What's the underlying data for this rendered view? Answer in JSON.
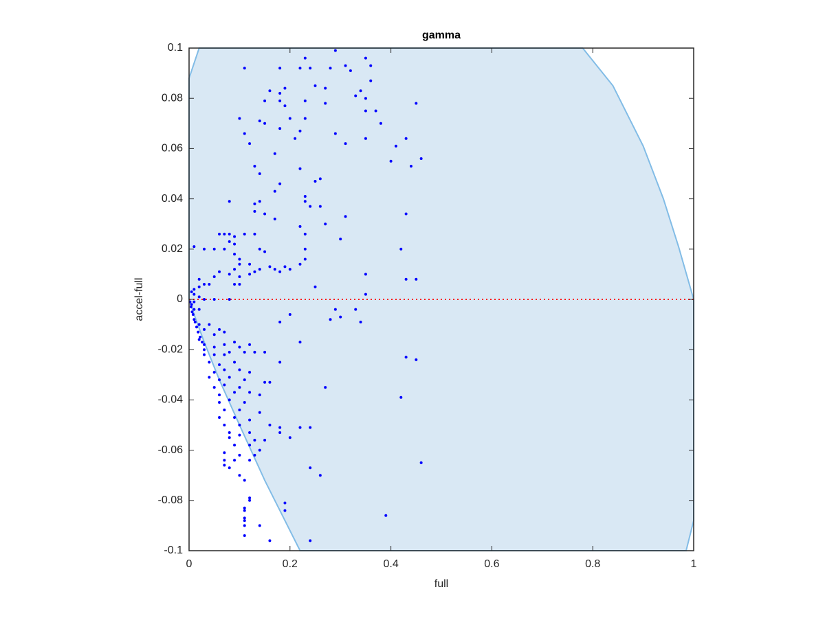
{
  "chart_data": {
    "type": "scatter",
    "title": "gamma",
    "x_label": "full",
    "y_label": "accel-full",
    "xlim": [
      0,
      1
    ],
    "ylim": [
      -0.1,
      0.1
    ],
    "xticks": [
      0,
      0.2,
      0.4,
      0.6,
      0.8,
      1
    ],
    "yticks": [
      -0.1,
      -0.08,
      -0.06,
      -0.04,
      -0.02,
      0,
      0.02,
      0.04,
      0.06,
      0.08,
      0.1
    ],
    "color": "#0000ff",
    "region": {
      "color": "#d9e8f4",
      "edge_color": "#82bce6",
      "x": [
        0,
        0,
        0.02,
        0.78,
        0.84,
        0.9,
        0.94,
        0.97,
        1,
        1,
        0.985,
        0.22,
        0.15,
        0.1,
        0.06,
        0.03,
        0.01
      ],
      "y": [
        0,
        0.088,
        0.1,
        0.1,
        0.085,
        0.061,
        0.04,
        0.021,
        0,
        -0.088,
        -0.1,
        -0.1,
        -0.072,
        -0.05,
        -0.032,
        -0.017,
        -0.006
      ]
    },
    "hline": {
      "value": 0,
      "color": "#ff0000"
    },
    "x": [
      0.29,
      0.23,
      0.35,
      0.36,
      0.31,
      0.32,
      0.24,
      0.22,
      0.28,
      0.18,
      0.11,
      0.25,
      0.19,
      0.18,
      0.16,
      0.27,
      0.34,
      0.35,
      0.33,
      0.36,
      0.15,
      0.18,
      0.19,
      0.23,
      0.27,
      0.45,
      0.35,
      0.37,
      0.1,
      0.14,
      0.15,
      0.2,
      0.23,
      0.38,
      0.11,
      0.18,
      0.22,
      0.29,
      0.21,
      0.35,
      0.43,
      0.12,
      0.31,
      0.41,
      0.17,
      0.4,
      0.46,
      0.44,
      0.13,
      0.14,
      0.22,
      0.25,
      0.26,
      0.18,
      0.17,
      0.08,
      0.14,
      0.13,
      0.23,
      0.23,
      0.24,
      0.26,
      0.13,
      0.43,
      0.15,
      0.17,
      0.31,
      0.27,
      0.22,
      0.06,
      0.07,
      0.08,
      0.11,
      0.13,
      0.23,
      0.3,
      0.08,
      0.09,
      0.09,
      0.01,
      0.03,
      0.05,
      0.07,
      0.14,
      0.15,
      0.23,
      0.42,
      0.09,
      0.1,
      0.23,
      0.22,
      0.1,
      0.12,
      0.19,
      0.2,
      0.16,
      0.17,
      0.14,
      0.13,
      0.06,
      0.05,
      0.09,
      0.08,
      0.12,
      0.1,
      0.18,
      0.35,
      0.43,
      0.45,
      0.02,
      0.03,
      0.04,
      0.09,
      0.1,
      0.25,
      0.02,
      0.01,
      0.005,
      0.01,
      0.35,
      0.02,
      0.03,
      0.05,
      0.08,
      0.01,
      0.005,
      0.01,
      0.02,
      0.29,
      0.33,
      0.2,
      0.3,
      0.28,
      0.34,
      0.18,
      0.01,
      0.02,
      0.03,
      0.04,
      0.06,
      0.05,
      0.07,
      0.02,
      0.03,
      0.05,
      0.07,
      0.09,
      0.1,
      0.12,
      0.22,
      0.03,
      0.05,
      0.07,
      0.08,
      0.11,
      0.13,
      0.15,
      0.43,
      0.45,
      0.04,
      0.06,
      0.09,
      0.18,
      0.05,
      0.07,
      0.1,
      0.12,
      0.04,
      0.06,
      0.08,
      0.11,
      0.15,
      0.16,
      0.05,
      0.07,
      0.1,
      0.27,
      0.06,
      0.09,
      0.12,
      0.14,
      0.06,
      0.08,
      0.11,
      0.42,
      0.07,
      0.1,
      0.14,
      0.06,
      0.09,
      0.12,
      0.07,
      0.1,
      0.16,
      0.08,
      0.12,
      0.18,
      0.22,
      0.24,
      0.08,
      0.1,
      0.13,
      0.15,
      0.18,
      0.2,
      0.09,
      0.12,
      0.14,
      0.07,
      0.1,
      0.13,
      0.07,
      0.09,
      0.12,
      0.46,
      0.07,
      0.08,
      0.24,
      0.1,
      0.26,
      0.11,
      0.12,
      0.12,
      0.19,
      0.19,
      0.11,
      0.11,
      0.39,
      0.11,
      0.11,
      0.11,
      0.14,
      0.11,
      0.16,
      0.24,
      0.002,
      0.004,
      0.006,
      0.008,
      0.012,
      0.015,
      0.018,
      0.022,
      0.026,
      0.03
    ],
    "values": [
      0.099,
      0.096,
      0.096,
      0.093,
      0.093,
      0.091,
      0.092,
      0.092,
      0.092,
      0.092,
      0.092,
      0.085,
      0.084,
      0.082,
      0.083,
      0.084,
      0.083,
      0.08,
      0.081,
      0.087,
      0.079,
      0.079,
      0.077,
      0.079,
      0.078,
      0.078,
      0.075,
      0.075,
      0.072,
      0.071,
      0.07,
      0.072,
      0.072,
      0.07,
      0.066,
      0.068,
      0.067,
      0.066,
      0.064,
      0.064,
      0.064,
      0.062,
      0.062,
      0.061,
      0.058,
      0.055,
      0.056,
      0.053,
      0.053,
      0.05,
      0.052,
      0.047,
      0.048,
      0.046,
      0.043,
      0.039,
      0.039,
      0.038,
      0.041,
      0.039,
      0.037,
      0.037,
      0.035,
      0.034,
      0.034,
      0.032,
      0.033,
      0.03,
      0.029,
      0.026,
      0.026,
      0.026,
      0.026,
      0.026,
      0.026,
      0.024,
      0.023,
      0.025,
      0.022,
      0.021,
      0.02,
      0.02,
      0.02,
      0.02,
      0.019,
      0.02,
      0.02,
      0.018,
      0.016,
      0.016,
      0.014,
      0.014,
      0.014,
      0.013,
      0.012,
      0.013,
      0.012,
      0.012,
      0.011,
      0.011,
      0.009,
      0.012,
      0.01,
      0.01,
      0.009,
      0.011,
      0.01,
      0.008,
      0.008,
      0.008,
      0.006,
      0.006,
      0.006,
      0.006,
      0.005,
      0.005,
      0.004,
      0.003,
      0.002,
      0.002,
      0.001,
      0,
      0,
      0,
      -0.001,
      -0.002,
      -0.004,
      -0.004,
      -0.004,
      -0.004,
      -0.006,
      -0.007,
      -0.008,
      -0.009,
      -0.009,
      -0.008,
      -0.01,
      -0.012,
      -0.01,
      -0.012,
      -0.014,
      -0.013,
      -0.016,
      -0.018,
      -0.019,
      -0.018,
      -0.017,
      -0.019,
      -0.018,
      -0.017,
      -0.022,
      -0.022,
      -0.022,
      -0.021,
      -0.021,
      -0.021,
      -0.021,
      -0.023,
      -0.024,
      -0.025,
      -0.026,
      -0.025,
      -0.025,
      -0.029,
      -0.028,
      -0.028,
      -0.029,
      -0.031,
      -0.032,
      -0.031,
      -0.032,
      -0.033,
      -0.033,
      -0.035,
      -0.034,
      -0.035,
      -0.035,
      -0.038,
      -0.037,
      -0.037,
      -0.038,
      -0.041,
      -0.04,
      -0.041,
      -0.039,
      -0.044,
      -0.044,
      -0.045,
      -0.047,
      -0.047,
      -0.048,
      -0.05,
      -0.05,
      -0.05,
      -0.053,
      -0.053,
      -0.051,
      -0.051,
      -0.051,
      -0.055,
      -0.054,
      -0.056,
      -0.056,
      -0.053,
      -0.055,
      -0.058,
      -0.058,
      -0.06,
      -0.061,
      -0.062,
      -0.062,
      -0.064,
      -0.064,
      -0.064,
      -0.065,
      -0.066,
      -0.067,
      -0.067,
      -0.07,
      -0.07,
      -0.072,
      -0.079,
      -0.08,
      -0.081,
      -0.084,
      -0.083,
      -0.084,
      -0.086,
      -0.087,
      -0.088,
      -0.09,
      -0.09,
      -0.094,
      -0.096,
      -0.096,
      -0.001,
      -0.003,
      -0.005,
      -0.006,
      -0.009,
      -0.011,
      -0.013,
      -0.015,
      -0.017,
      -0.02
    ]
  }
}
